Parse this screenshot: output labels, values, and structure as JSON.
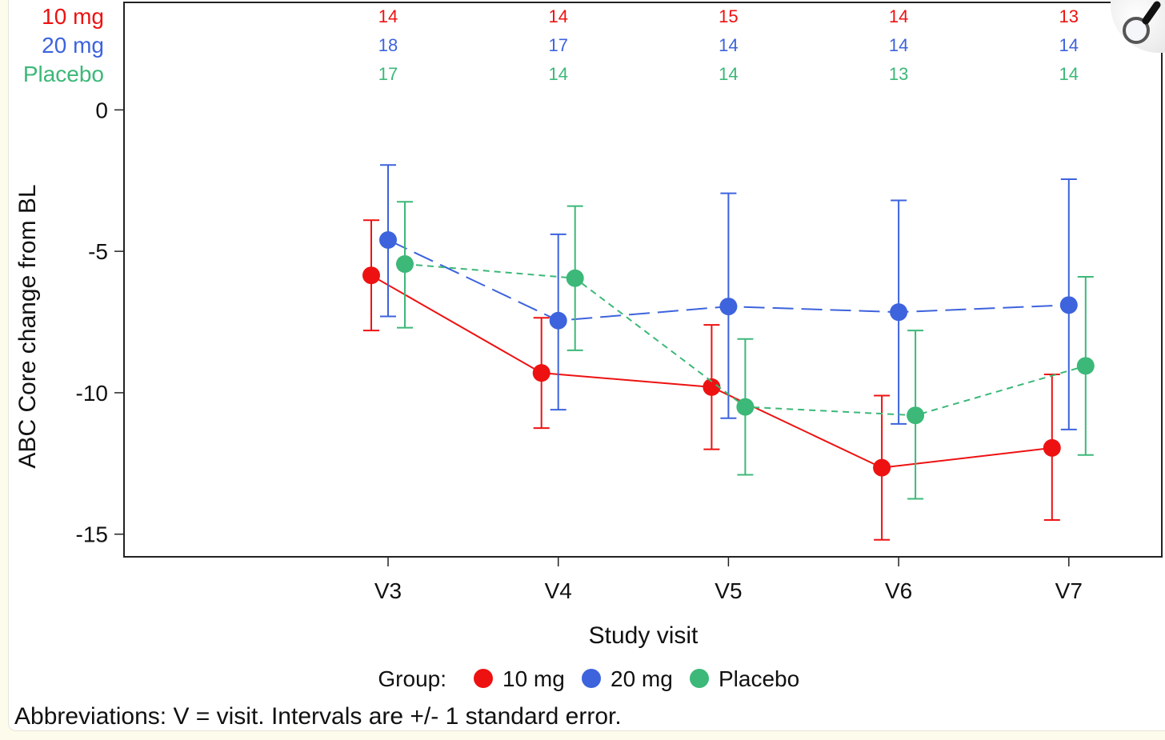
{
  "chart_data": {
    "type": "line",
    "title": "",
    "xlabel": "Study visit",
    "ylabel": "ABC Core change from BL",
    "categories": [
      "V3",
      "V4",
      "V5",
      "V6",
      "V7"
    ],
    "ylim": [
      -15.8,
      3.8
    ],
    "yticks": [
      0,
      -5,
      -10,
      -15
    ],
    "ytick_labels": [
      "0",
      "-5",
      "-10",
      "-15"
    ],
    "grid": false,
    "series": [
      {
        "name": "10 mg",
        "color": "#ee1111",
        "dash": "solid",
        "values": [
          -5.85,
          -9.3,
          -9.8,
          -12.65,
          -11.95
        ],
        "lower": [
          -7.8,
          -11.25,
          -12.0,
          -15.2,
          -14.5
        ],
        "upper": [
          -3.9,
          -7.35,
          -7.6,
          -10.1,
          -9.35
        ],
        "n": [
          "14",
          "14",
          "15",
          "14",
          "13"
        ]
      },
      {
        "name": "20 mg",
        "color": "#3d63dd",
        "dash": "long",
        "values": [
          -4.6,
          -7.45,
          -6.95,
          -7.15,
          -6.9
        ],
        "lower": [
          -7.3,
          -10.6,
          -10.9,
          -11.1,
          -11.3
        ],
        "upper": [
          -1.95,
          -4.4,
          -2.95,
          -3.2,
          -2.45
        ],
        "n": [
          "18",
          "17",
          "14",
          "14",
          "14"
        ]
      },
      {
        "name": "Placebo",
        "color": "#3cb878",
        "dash": "short",
        "values": [
          -5.45,
          -5.95,
          -10.5,
          -10.8,
          -9.05
        ],
        "lower": [
          -7.7,
          -8.5,
          -12.9,
          -13.75,
          -12.2
        ],
        "upper": [
          -3.25,
          -3.4,
          -8.1,
          -7.8,
          -5.9
        ],
        "n": [
          "17",
          "14",
          "14",
          "13",
          "14"
        ]
      }
    ],
    "legend": {
      "title": "Group:",
      "placement": "bottom"
    },
    "footnote": "Abbreviations: V = visit. Intervals are +/- 1 standard error."
  },
  "icons": {
    "zoom": "magnifier-icon"
  }
}
